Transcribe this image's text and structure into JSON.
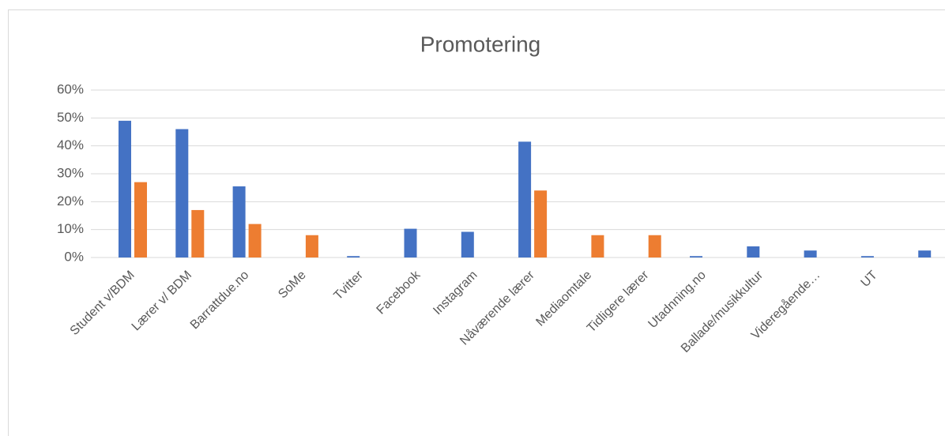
{
  "chart_data": {
    "type": "bar",
    "title": "Promotering",
    "categories": [
      "Student v/BDM",
      "Lærer v/ BDM",
      "Barrattdue.no",
      "SoMe",
      "Tvitter",
      "Facebook",
      "Instagram",
      "Nåværende lærer",
      "Mediaomtale",
      "Tidligere lærer",
      "Utadnning.no",
      "Ballade/musikkultur",
      "Videregående…",
      "UT",
      null
    ],
    "series": [
      {
        "color": "#4472c4",
        "values": [
          49,
          46,
          25.5,
          0,
          0.5,
          10.3,
          9.2,
          41.5,
          0,
          0,
          0.5,
          4,
          2.5,
          0.5,
          2.5
        ]
      },
      {
        "color": "#ed7d31",
        "values": [
          27,
          17,
          12,
          8,
          0,
          0,
          0,
          24,
          8,
          8,
          0,
          0,
          0,
          0,
          0
        ]
      }
    ],
    "ylim": [
      0,
      60
    ],
    "yticks": [
      {
        "value": 0,
        "label": "0%"
      },
      {
        "value": 10,
        "label": "10%"
      },
      {
        "value": 20,
        "label": "20%"
      },
      {
        "value": 30,
        "label": "30%"
      },
      {
        "value": 40,
        "label": "40%"
      },
      {
        "value": 50,
        "label": "50%"
      },
      {
        "value": 60,
        "label": "60%"
      }
    ],
    "grid": true
  }
}
